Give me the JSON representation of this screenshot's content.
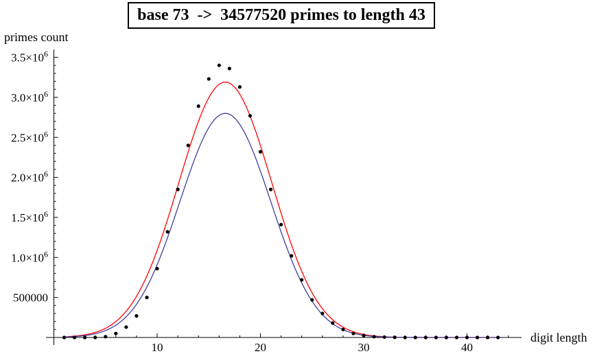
{
  "chart_data": {
    "type": "scatter",
    "title": "base 73  ->  34577520 primes to length 43",
    "xlabel": "digit length",
    "ylabel": "primes count",
    "xlim": [
      0,
      45
    ],
    "ylim": [
      0,
      3500000
    ],
    "x_ticks": [
      10,
      20,
      30,
      40
    ],
    "x_tick_labels": [
      "10",
      "20",
      "30",
      "40"
    ],
    "y_ticks": [
      500000,
      1000000,
      1500000,
      2000000,
      2500000,
      3000000,
      3500000
    ],
    "y_tick_labels": [
      {
        "value": 500000,
        "mantissa": "500000",
        "exp": ""
      },
      {
        "value": 1000000,
        "mantissa": "1.0",
        "exp": "6"
      },
      {
        "value": 1500000,
        "mantissa": "1.5",
        "exp": "6"
      },
      {
        "value": 2000000,
        "mantissa": "2.0",
        "exp": "6"
      },
      {
        "value": 2500000,
        "mantissa": "2.5",
        "exp": "6"
      },
      {
        "value": 3000000,
        "mantissa": "3.0",
        "exp": "6"
      },
      {
        "value": 3500000,
        "mantissa": "3.5",
        "exp": "6"
      }
    ],
    "grid": false,
    "series": [
      {
        "kind": "points",
        "color": "#000000",
        "x": [
          1,
          2,
          3,
          4,
          5,
          6,
          7,
          8,
          9,
          10,
          11,
          12,
          13,
          14,
          15,
          16,
          17,
          18,
          19,
          20,
          21,
          22,
          23,
          24,
          25,
          26,
          27,
          28,
          29,
          30,
          31,
          32,
          33,
          34,
          35,
          36,
          37,
          38,
          39,
          40,
          41,
          42,
          43
        ],
        "y": [
          0,
          0,
          0,
          0,
          10000,
          50000,
          130000,
          270000,
          500000,
          860000,
          1320000,
          1850000,
          2400000,
          2890000,
          3230000,
          3400000,
          3360000,
          3130000,
          2770000,
          2320000,
          1850000,
          1410000,
          1020000,
          720000,
          470000,
          300000,
          180000,
          100000,
          50000,
          25000,
          10000,
          5000,
          2000,
          0,
          0,
          0,
          0,
          0,
          0,
          0,
          0,
          0,
          0
        ]
      },
      {
        "kind": "curve",
        "color": "#ff0000",
        "peak_x": 16.6,
        "peak_y": 3190000,
        "sigma": 4.5
      },
      {
        "kind": "curve",
        "color": "#3d3d9e",
        "peak_x": 16.6,
        "peak_y": 2800000,
        "sigma": 4.4
      }
    ]
  }
}
